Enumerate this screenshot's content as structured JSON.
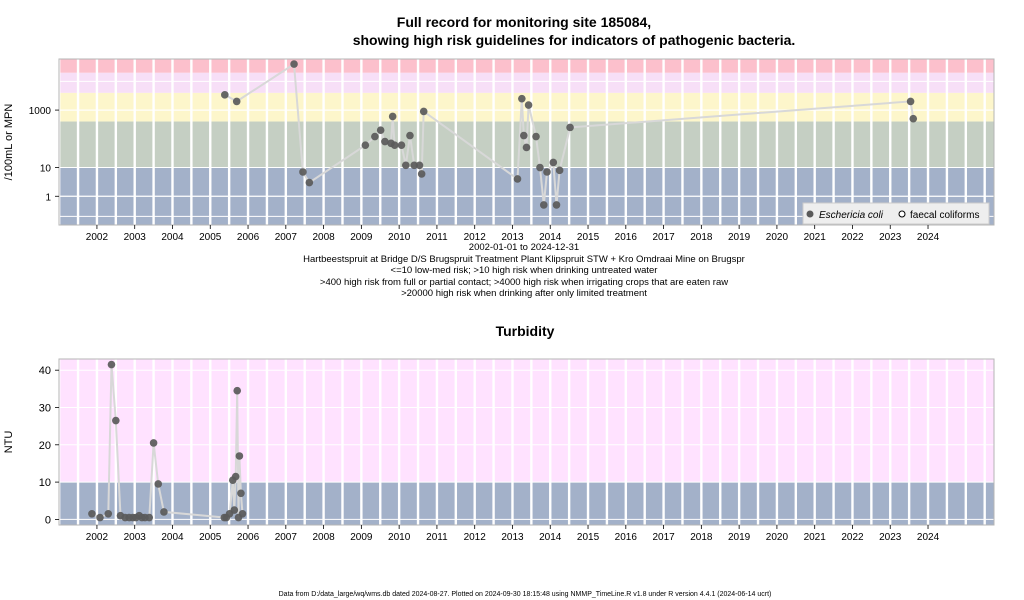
{
  "title_line1": "Full record for monitoring site 185084,",
  "title_line2": "showing high risk guidelines for indicators of pathogenic bacteria.",
  "site_caption": {
    "range": "2002-01-01 to 2024-12-31",
    "site": "Hartbeestspruit at Bridge D/S Brugspruit Treatment Plant Klipspruit STW + Kro Omdraai Mine on Brugspr",
    "guide1": "<=10 low-med risk; >10 high risk when drinking untreated water",
    "guide2": ">400 high risk from full or partial contact; >4000 high risk when irrigating crops that are eaten raw",
    "guide3": ">20000 high risk when drinking after only limited treatment"
  },
  "footer": "Data from D:/data_large/wq/wms.db dated 2024-08-27. Plotted on 2024-09-30 18:15:48 using NMMP_TimeLine.R v1.8 under R version 4.4.1 (2024-06-14 ucrt)",
  "colors": {
    "band_blue": "#a3b1c9",
    "band_sage": "#c5cfc3",
    "band_yellow": "#fdf6cb",
    "band_lilac": "#f7dff7",
    "band_pink": "#ffe2ff",
    "band_rose": "#fcc0cc",
    "grid": "#ffffff",
    "point": "#5a5a5a",
    "line": "#d8d8d8"
  },
  "chart_data": [
    {
      "type": "scatter",
      "ylabel": "/100mL or MPN",
      "y_scale": "log",
      "yticks": [
        "1",
        "10",
        "1000"
      ],
      "ylim": [
        0.1,
        60000
      ],
      "xlim": [
        "2001-07-01",
        "2026-04-01"
      ],
      "xticks": [
        "2002",
        "2003",
        "2004",
        "2005",
        "2006",
        "2007",
        "2008",
        "2009",
        "2010",
        "2011",
        "2012",
        "2013",
        "2014",
        "2015",
        "2016",
        "2017",
        "2018",
        "2019",
        "2020",
        "2021",
        "2022",
        "2023",
        "2024"
      ],
      "guideline_bands": [
        10,
        400,
        4000,
        20000
      ],
      "legend": {
        "position": "bottom-right",
        "entries": [
          "Eschericia coli",
          "faecal coliforms"
        ]
      },
      "series": [
        {
          "name": "Eschericia coli",
          "points": [
            [
              "2005-11-20",
              3400
            ],
            [
              "2006-03-15",
              2000
            ],
            [
              "2007-09-20",
              40000
            ],
            [
              "2007-12-15",
              7
            ],
            [
              "2008-02-15",
              3
            ],
            [
              "2009-08-10",
              60
            ],
            [
              "2009-11-10",
              120
            ],
            [
              "2010-01-05",
              200
            ],
            [
              "2010-02-15",
              80
            ],
            [
              "2010-04-15",
              70
            ],
            [
              "2010-05-01",
              600
            ],
            [
              "2010-05-20",
              60
            ],
            [
              "2010-07-25",
              60
            ],
            [
              "2010-09-05",
              12
            ],
            [
              "2010-10-15",
              130
            ],
            [
              "2010-11-25",
              12
            ],
            [
              "2011-01-15",
              12
            ],
            [
              "2011-02-05",
              6
            ],
            [
              "2011-02-25",
              900
            ],
            [
              "2013-08-20",
              4
            ],
            [
              "2013-10-01",
              2500
            ],
            [
              "2013-10-20",
              130
            ],
            [
              "2013-11-15",
              50
            ],
            [
              "2013-12-05",
              1500
            ],
            [
              "2014-02-15",
              120
            ],
            [
              "2014-03-25",
              10
            ],
            [
              "2014-05-01",
              0.5
            ],
            [
              "2014-06-01",
              7
            ],
            [
              "2014-08-01",
              15
            ],
            [
              "2014-09-01",
              0.5
            ],
            [
              "2014-10-01",
              8
            ],
            [
              "2015-01-10",
              250
            ],
            [
              "2024-01-15",
              2000
            ],
            [
              "2024-02-10",
              500
            ]
          ]
        },
        {
          "name": "faecal coliforms",
          "points": []
        }
      ]
    },
    {
      "type": "scatter",
      "title": "Turbidity",
      "ylabel": "NTU",
      "ylim": [
        -1.5,
        43
      ],
      "yticks": [
        0,
        10,
        20,
        30,
        40
      ],
      "xlim": [
        "2001-07-01",
        "2026-04-01"
      ],
      "xticks": [
        "2002",
        "2003",
        "2004",
        "2005",
        "2006",
        "2007",
        "2008",
        "2009",
        "2010",
        "2011",
        "2012",
        "2013",
        "2014",
        "2015",
        "2016",
        "2017",
        "2018",
        "2019",
        "2020",
        "2021",
        "2022",
        "2023",
        "2024"
      ],
      "guideline_bands": [
        10
      ],
      "series": [
        {
          "name": "",
          "points": [
            [
              "2002-05-15",
              1.5
            ],
            [
              "2002-08-01",
              0.5
            ],
            [
              "2002-10-20",
              1.5
            ],
            [
              "2002-11-20",
              41.5
            ],
            [
              "2003-01-01",
              26.5
            ],
            [
              "2003-02-15",
              1.0
            ],
            [
              "2003-04-01",
              0.5
            ],
            [
              "2003-05-10",
              0.5
            ],
            [
              "2003-06-15",
              0.5
            ],
            [
              "2003-07-15",
              0.5
            ],
            [
              "2003-08-15",
              1.0
            ],
            [
              "2003-09-10",
              0.5
            ],
            [
              "2003-10-10",
              0.5
            ],
            [
              "2003-11-20",
              0.5
            ],
            [
              "2004-01-01",
              20.5
            ],
            [
              "2004-02-15",
              9.5
            ],
            [
              "2004-04-10",
              2.0
            ],
            [
              "2005-11-15",
              0.5
            ],
            [
              "2005-12-05",
              0.5
            ],
            [
              "2006-01-05",
              1.5
            ],
            [
              "2006-02-05",
              10.5
            ],
            [
              "2006-02-20",
              2.5
            ],
            [
              "2006-03-05",
              11.5
            ],
            [
              "2006-03-20",
              34.5
            ],
            [
              "2006-04-10",
              17.0
            ],
            [
              "2006-04-25",
              7.0
            ],
            [
              "2006-05-10",
              1.5
            ],
            [
              "2006-04-01",
              0.5
            ]
          ]
        }
      ]
    }
  ]
}
